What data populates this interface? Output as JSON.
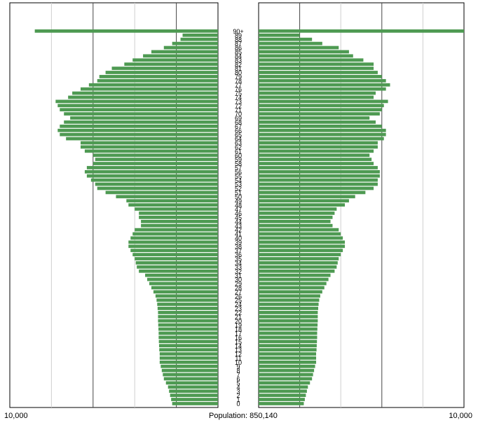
{
  "chart_data": {
    "type": "bar",
    "orientation": "horizontal",
    "bar_color": "#4e9a52",
    "x_axis": {
      "left_max": "10,000",
      "right_max": "10,000",
      "max_value": 10000
    },
    "population_label": "Population:",
    "population_value": "850,140",
    "top_age_label": "90+",
    "ages": [
      0,
      1,
      2,
      3,
      4,
      5,
      6,
      7,
      8,
      9,
      10,
      11,
      12,
      13,
      14,
      15,
      16,
      17,
      18,
      19,
      20,
      21,
      22,
      23,
      24,
      25,
      26,
      27,
      28,
      29,
      30,
      31,
      32,
      33,
      34,
      35,
      36,
      37,
      38,
      39,
      40,
      41,
      42,
      43,
      44,
      45,
      46,
      47,
      48,
      49,
      50,
      51,
      52,
      53,
      54,
      55,
      56,
      57,
      58,
      59,
      60,
      61,
      62,
      63,
      64,
      65,
      66,
      67,
      68,
      69,
      70,
      71,
      72,
      73,
      74,
      75,
      76,
      77,
      78,
      79,
      80,
      81,
      82,
      83,
      84,
      85,
      86,
      87,
      88,
      89,
      90
    ],
    "series": [
      {
        "side": "left",
        "values": [
          2200,
          2250,
          2300,
          2350,
          2400,
          2500,
          2600,
          2650,
          2700,
          2750,
          2800,
          2800,
          2800,
          2820,
          2830,
          2840,
          2850,
          2850,
          2860,
          2870,
          2880,
          2880,
          2880,
          2900,
          2920,
          2950,
          3000,
          3100,
          3200,
          3300,
          3400,
          3500,
          3800,
          3900,
          3950,
          4000,
          4100,
          4200,
          4300,
          4300,
          4200,
          4100,
          4000,
          3700,
          3700,
          3800,
          3800,
          4000,
          4300,
          4400,
          4900,
          5400,
          5800,
          5900,
          6100,
          6300,
          6400,
          6300,
          6000,
          5900,
          6000,
          6400,
          6600,
          6600,
          7300,
          7600,
          7700,
          7600,
          7400,
          7100,
          7400,
          7600,
          7700,
          7800,
          7200,
          7000,
          6600,
          6200,
          5800,
          5700,
          5400,
          5100,
          4500,
          4100,
          3600,
          3200,
          2600,
          2200,
          1800,
          1700,
          8800
        ]
      },
      {
        "side": "right",
        "values": [
          2200,
          2250,
          2300,
          2350,
          2400,
          2500,
          2600,
          2650,
          2700,
          2750,
          2800,
          2800,
          2800,
          2820,
          2830,
          2840,
          2850,
          2850,
          2860,
          2870,
          2880,
          2880,
          2880,
          2900,
          2920,
          2950,
          3000,
          3100,
          3200,
          3300,
          3400,
          3500,
          3700,
          3800,
          3850,
          3900,
          4000,
          4100,
          4200,
          4200,
          4100,
          4000,
          3900,
          3600,
          3500,
          3600,
          3700,
          3800,
          4200,
          4400,
          4700,
          5200,
          5600,
          5800,
          5800,
          5900,
          5900,
          5800,
          5600,
          5500,
          5400,
          5600,
          5800,
          5800,
          6100,
          6200,
          6200,
          6000,
          5700,
          5400,
          5900,
          6000,
          6100,
          6300,
          5600,
          5700,
          6200,
          6400,
          6200,
          6000,
          5800,
          5600,
          5600,
          5100,
          4600,
          4400,
          3900,
          3100,
          2600,
          2000,
          10000
        ]
      }
    ]
  }
}
